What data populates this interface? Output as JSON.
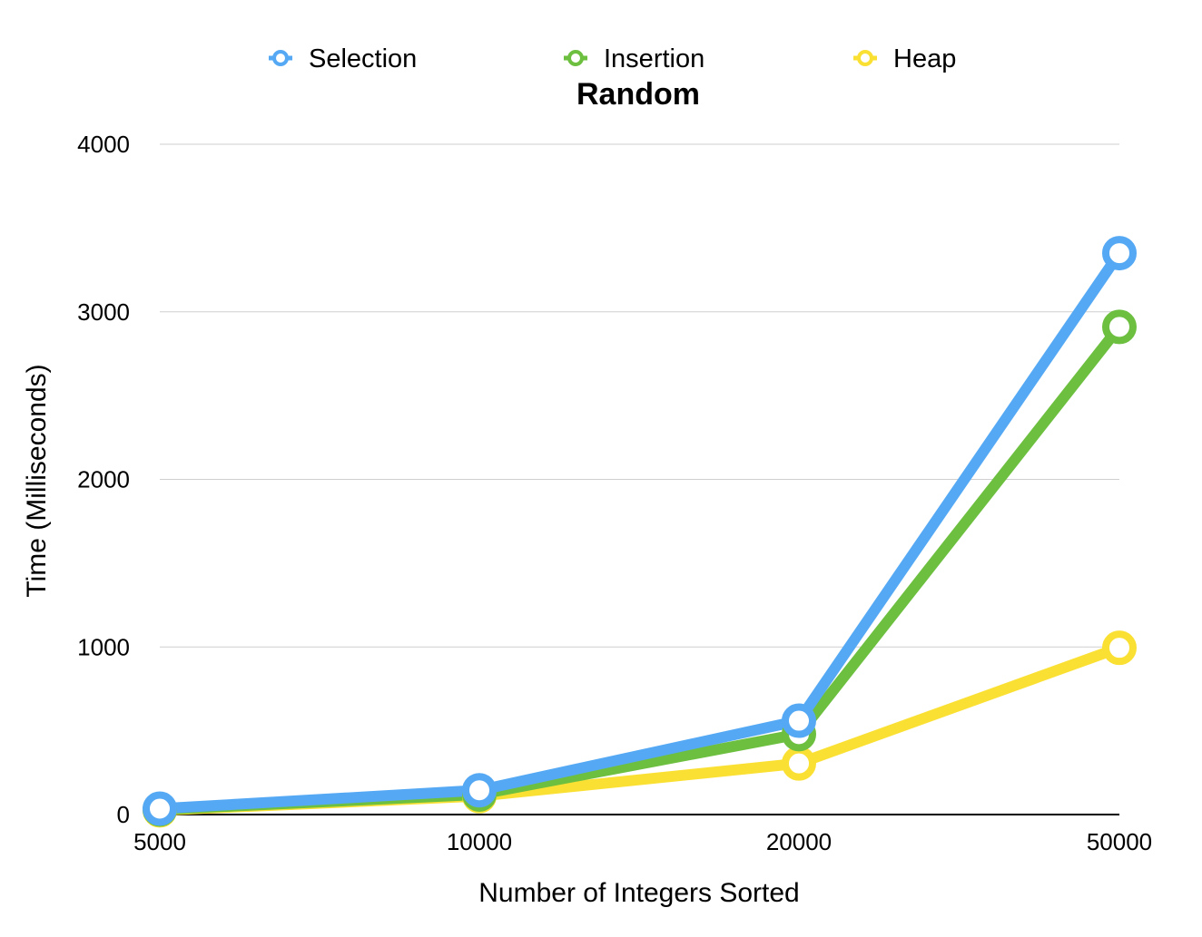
{
  "chart_data": {
    "type": "line",
    "title": "Random",
    "xlabel": "Number of Integers Sorted",
    "ylabel": "Time (Milliseconds)",
    "categories": [
      "5000",
      "10000",
      "20000",
      "50000"
    ],
    "ylim": [
      0,
      4000
    ],
    "yticks": [
      "0",
      "1000",
      "2000",
      "3000",
      "4000"
    ],
    "grid": true,
    "legend_position": "top",
    "series": [
      {
        "name": "Selection",
        "color": "#55a9f4",
        "values": [
          35,
          145,
          560,
          3350
        ]
      },
      {
        "name": "Insertion",
        "color": "#6cbf3f",
        "values": [
          30,
          120,
          480,
          2910
        ]
      },
      {
        "name": "Heap",
        "color": "#fbe034",
        "values": [
          25,
          110,
          305,
          995
        ]
      }
    ]
  }
}
